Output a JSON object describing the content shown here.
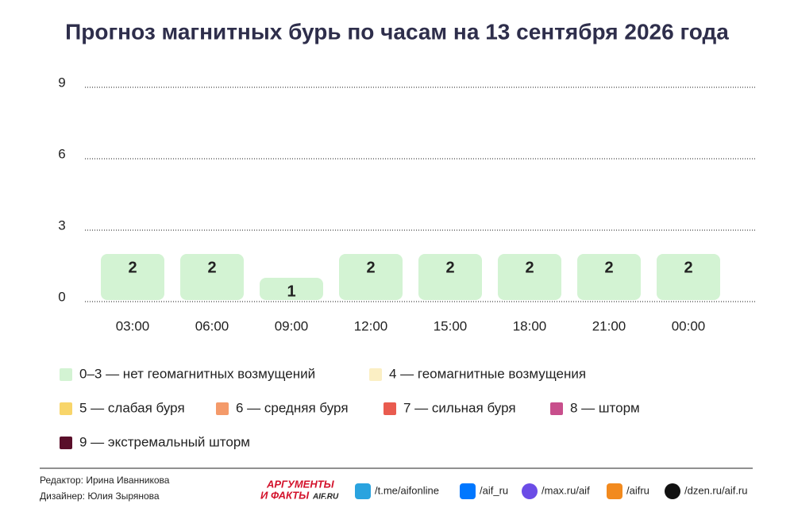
{
  "chart_data": {
    "type": "bar",
    "title": "Прогноз магнитных бурь по часам на 13 сентября 2026 года",
    "categories": [
      "03:00",
      "06:00",
      "09:00",
      "12:00",
      "15:00",
      "18:00",
      "21:00",
      "00:00"
    ],
    "values": [
      2,
      2,
      1,
      2,
      2,
      2,
      2,
      2
    ],
    "color": "#d3f3d3",
    "ylim": [
      0,
      9
    ],
    "yticks": [
      0,
      3,
      6,
      9
    ],
    "grid": true,
    "legend": [
      {
        "label": "0–3 — нет геомагнитных возмущений",
        "color": "#d3f3d3"
      },
      {
        "label": "4 — геомагнитные возмущения",
        "color": "#fbefc4"
      },
      {
        "label": "5 — слабая буря",
        "color": "#f8d56a"
      },
      {
        "label": "6 — средняя буря",
        "color": "#f49a6a"
      },
      {
        "label": "7 — сильная буря",
        "color": "#e95b4f"
      },
      {
        "label": "8 — шторм",
        "color": "#c84f8c"
      },
      {
        "label": "9 — экстремальный шторм",
        "color": "#5a0f2a"
      }
    ]
  },
  "footer": {
    "editor": "Редактор: Ирина Иванникова",
    "designer": "Дизайнер: Юлия Зырянова",
    "logo": [
      "АРГУМЕНТЫ",
      "И ФАКТЫ",
      "AIF.RU"
    ],
    "links": [
      "/t.me/aifonline",
      "/aif_ru",
      "/max.ru/aif",
      "/aifru",
      "/dzen.ru/aif.ru"
    ]
  }
}
